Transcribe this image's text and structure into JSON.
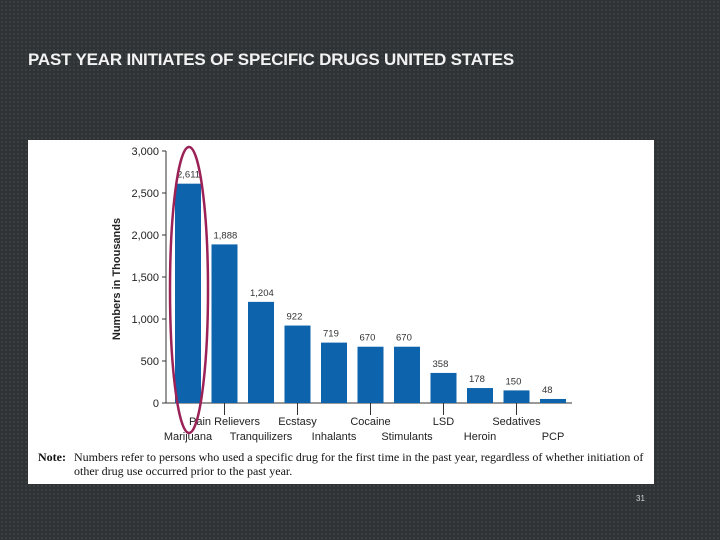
{
  "slide": {
    "title": "PAST YEAR INITIATES OF SPECIFIC DRUGS UNITED STATES",
    "page_number": "31"
  },
  "chart_data": {
    "type": "bar",
    "title": "",
    "xlabel": "",
    "ylabel": "Numbers in Thousands",
    "ylim": [
      0,
      3000
    ],
    "yticks": [
      "0",
      "500",
      "1,000",
      "1,500",
      "2,000",
      "2,500",
      "3,000"
    ],
    "grid": false,
    "bar_color": "#0e63ad",
    "highlight_color": "#9b2257",
    "categories": [
      "Marijuana",
      "Pain Relievers",
      "Tranquilizers",
      "Ecstasy",
      "Inhalants",
      "Cocaine",
      "Stimulants",
      "LSD",
      "Heroin",
      "Sedatives",
      "PCP"
    ],
    "values": [
      2611,
      1888,
      1204,
      922,
      719,
      670,
      670,
      358,
      178,
      150,
      48
    ],
    "value_labels": [
      "2,611",
      "1,888",
      "1,204",
      "922",
      "719",
      "670",
      "670",
      "358",
      "178",
      "150",
      "48"
    ],
    "highlighted_category": "Marijuana",
    "note_label": "Note:",
    "note_text": "Numbers refer to persons who used a specific drug for the first time in the past year, regardless of whether initiation of other drug use occurred prior to the past year."
  }
}
